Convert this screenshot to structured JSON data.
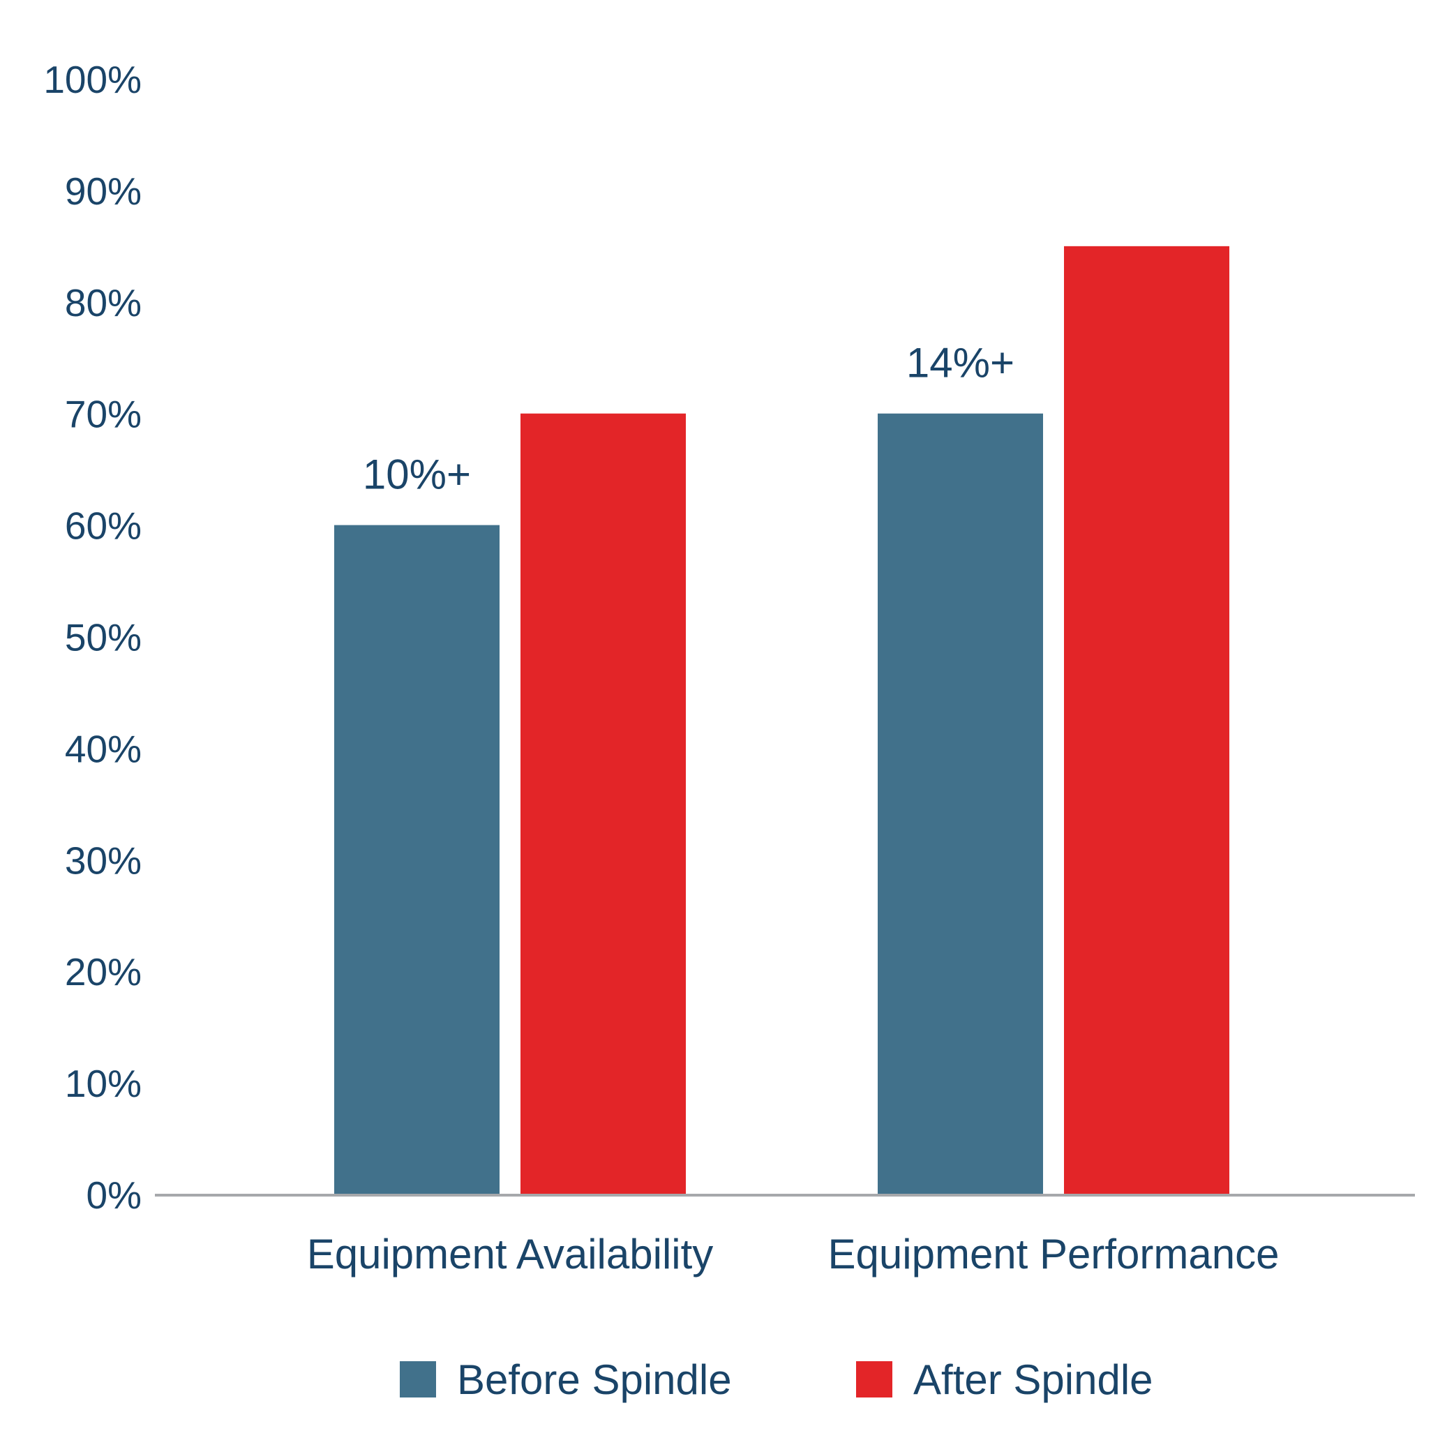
{
  "chart_data": {
    "type": "bar",
    "categories": [
      "Equipment Availability",
      "Equipment Performance"
    ],
    "series": [
      {
        "name": "Before Spindle",
        "color": "#41718B",
        "values": [
          60,
          70
        ]
      },
      {
        "name": "After Spindle",
        "color": "#E32528",
        "values": [
          70,
          85
        ]
      }
    ],
    "annotations": [
      {
        "category": "Equipment Availability",
        "text": "10%+"
      },
      {
        "category": "Equipment Performance",
        "text": "14%+"
      }
    ],
    "ylim": [
      0,
      100
    ],
    "yticks": [
      0,
      10,
      20,
      30,
      40,
      50,
      60,
      70,
      80,
      90,
      100
    ],
    "ytick_labels": [
      "0%",
      "10%",
      "20%",
      "30%",
      "40%",
      "50%",
      "60%",
      "70%",
      "80%",
      "90%",
      "100%"
    ],
    "grid": false,
    "legend_position": "bottom",
    "text_color": "#1A4468",
    "axis_color": "#A6A8AB"
  }
}
